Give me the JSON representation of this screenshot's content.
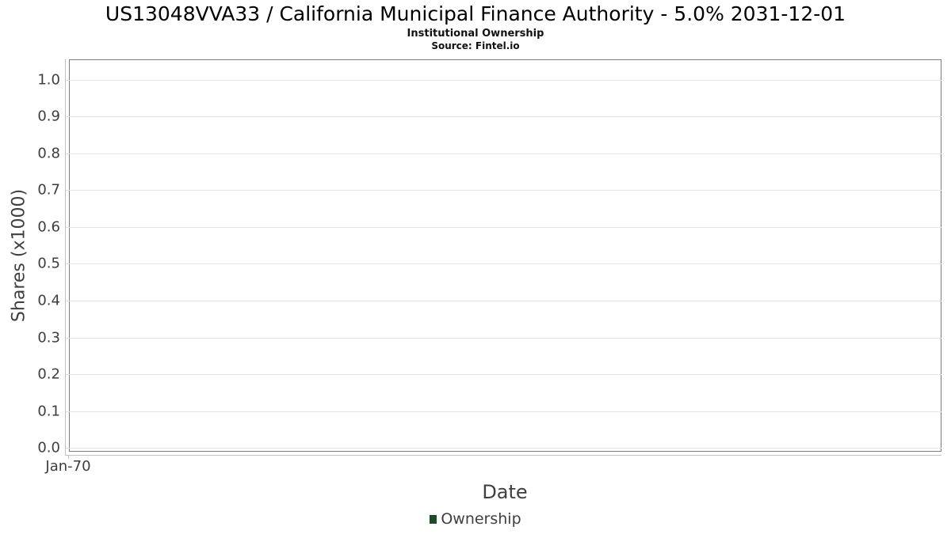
{
  "header": {
    "title": "US13048VVA33 / California Municipal Finance Authority - 5.0% 2031-12-01",
    "subtitle": "Institutional Ownership",
    "source": "Source: Fintel.io"
  },
  "chart_data": {
    "type": "line",
    "title": "US13048VVA33 / California Municipal Finance Authority - 5.0% 2031-12-01",
    "subtitle": "Institutional Ownership",
    "source": "Source: Fintel.io",
    "xlabel": "Date",
    "ylabel": "Shares (x1000)",
    "x_tick_labels": [
      "Jan-70"
    ],
    "y_ticks": [
      0.0,
      0.1,
      0.2,
      0.3,
      0.4,
      0.5,
      0.6,
      0.7,
      0.8,
      0.9,
      1.0
    ],
    "ylim": [
      -0.01,
      1.055
    ],
    "grid": true,
    "legend_position": "bottom-center",
    "series": [
      {
        "name": "Ownership",
        "color": "#1e4a27",
        "x": [],
        "values": []
      }
    ]
  },
  "colors": {
    "background": "#ffffff",
    "plot_border": "#7d7d7d",
    "gridline": "#e4e4e4",
    "axis_rail": "#c2c2c2",
    "tick_text": "#3d3d3d",
    "axis_title_text": "#3f3f3f",
    "title_text": "#000000",
    "legend_marker": "#1e4a27"
  }
}
